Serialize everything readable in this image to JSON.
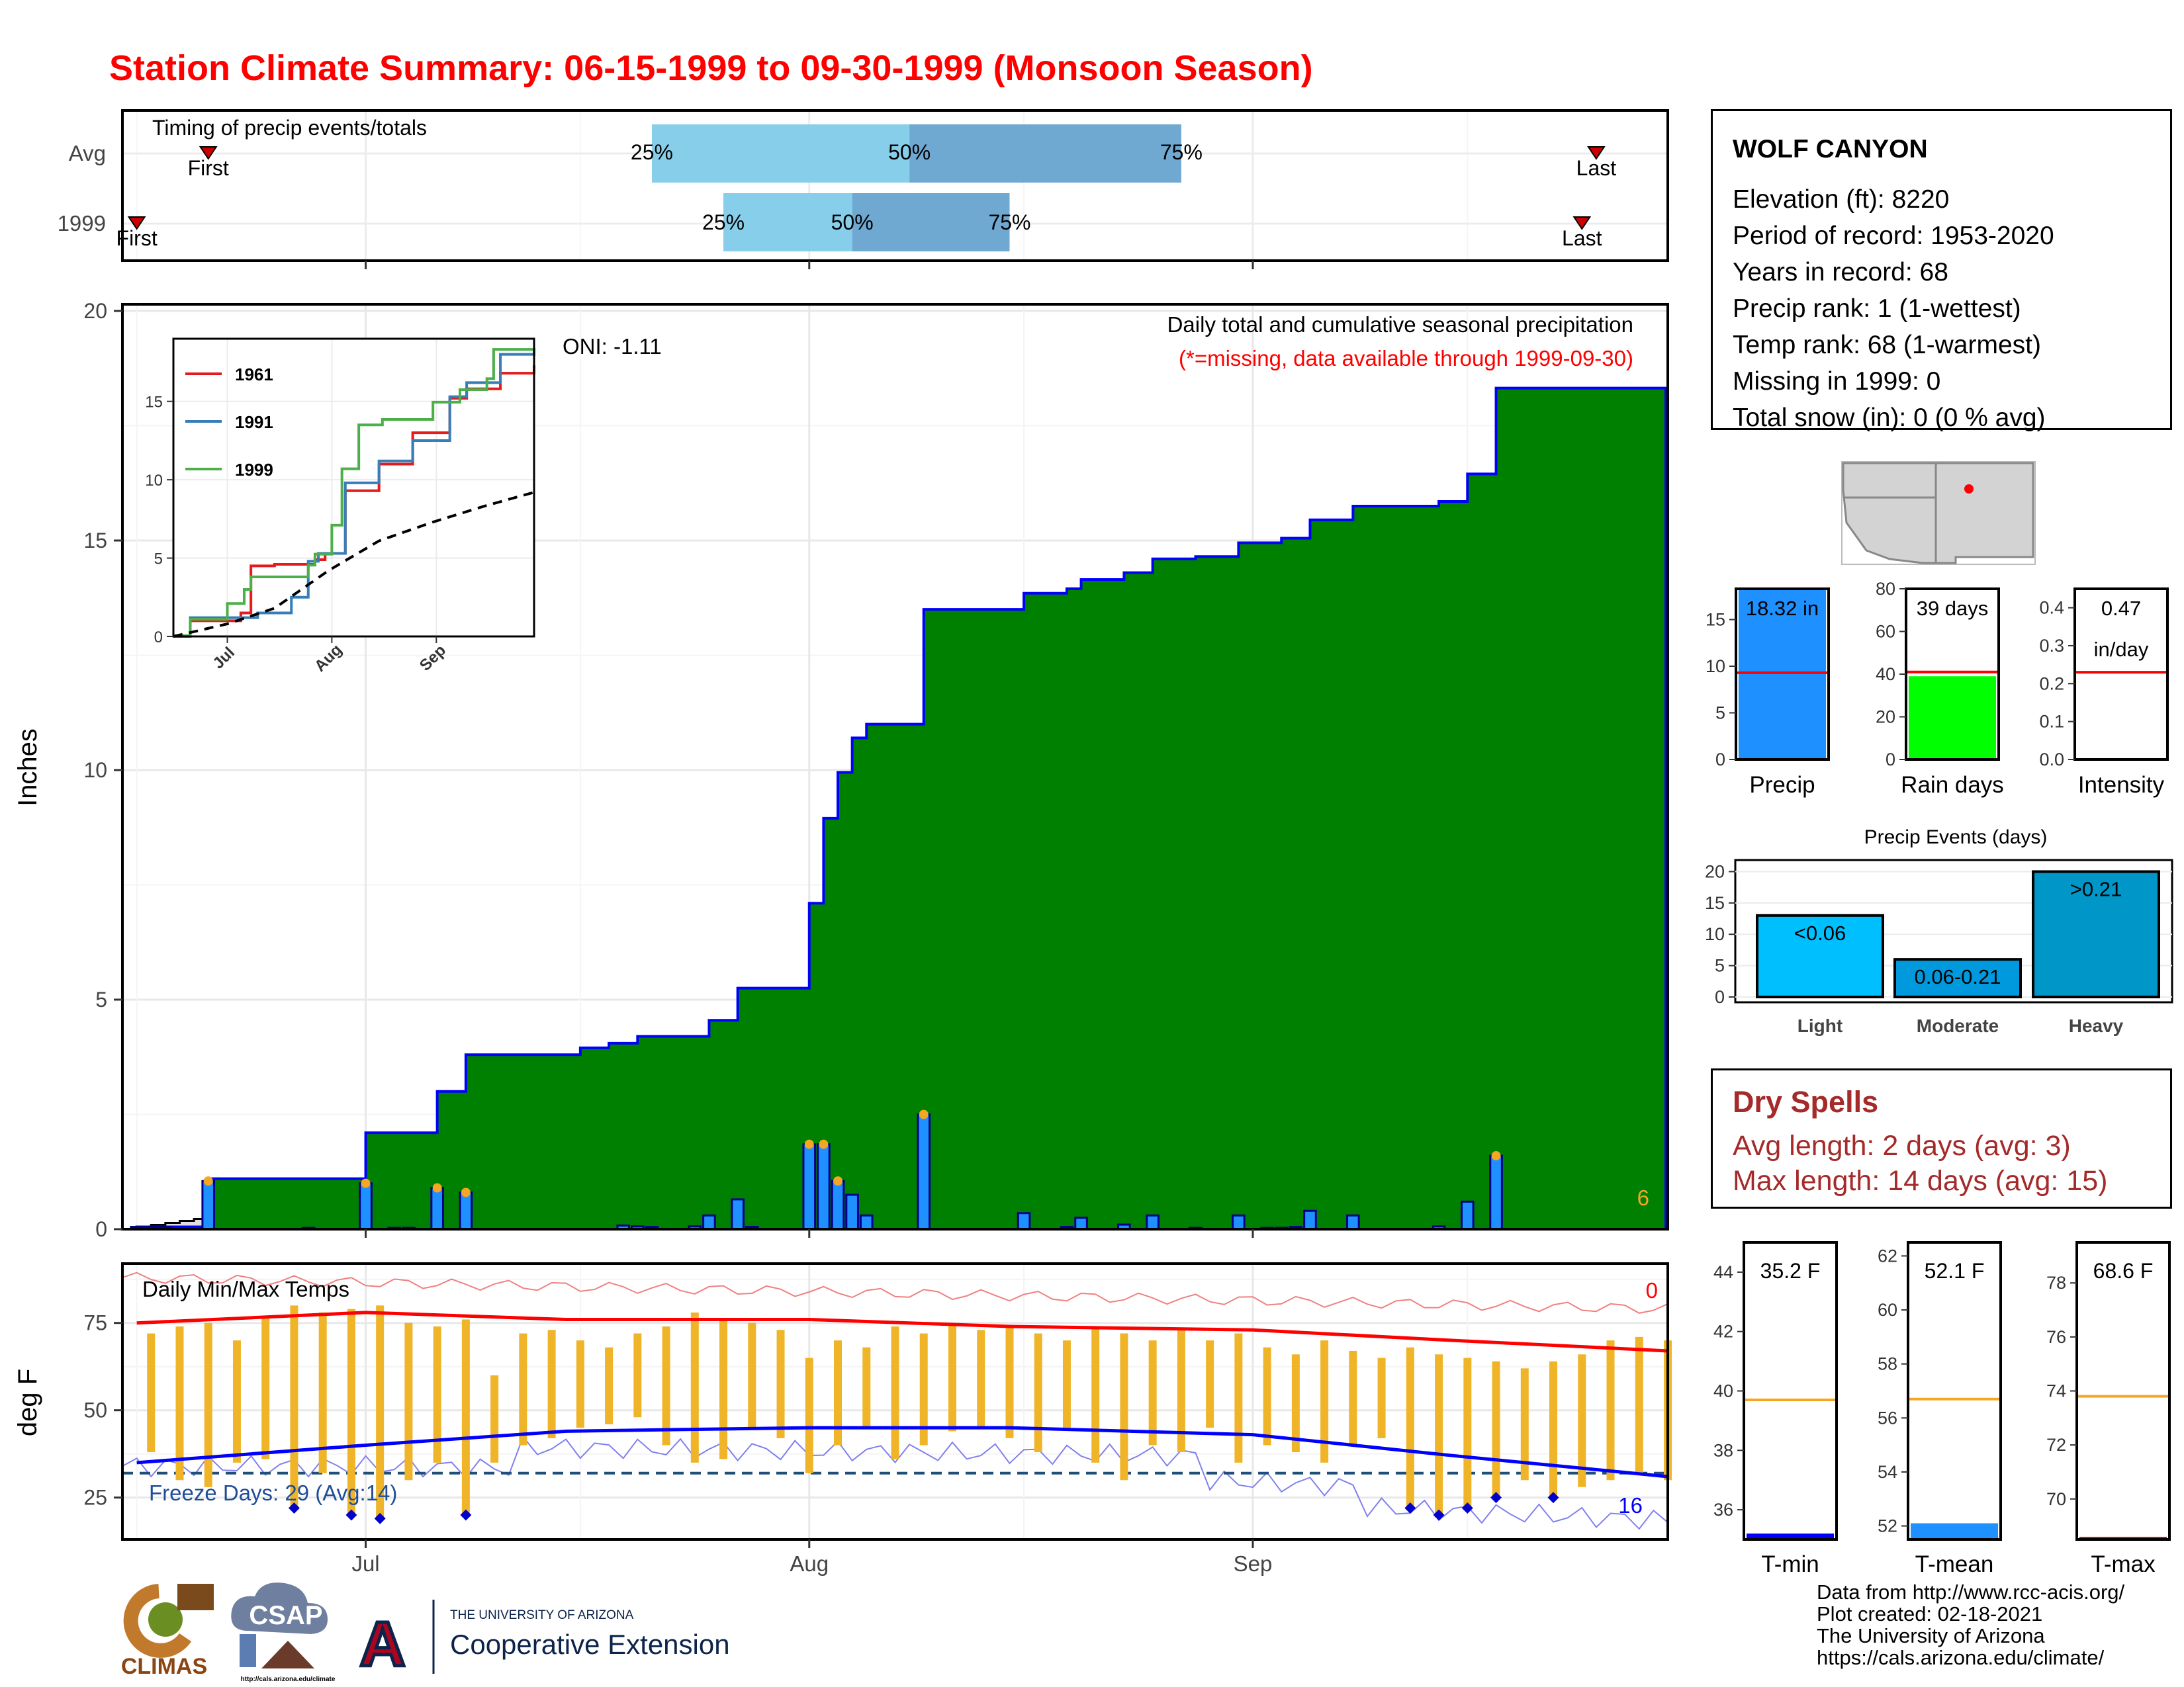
{
  "title": "Station Climate Summary: 06-15-1999 to 09-30-1999 (Monsoon Season)",
  "station": {
    "name": "WOLF CANYON",
    "lines": [
      "Elevation (ft): 8220",
      "Period of record: 1953-2020",
      "Years in record: 68",
      "Precip rank: 1 (1-wettest)",
      "Temp rank: 68 (1-warmest)",
      "Missing in 1999: 0",
      "Total snow (in): 0 (0 % avg)"
    ]
  },
  "timing": {
    "title": "Timing of precip events/totals",
    "rows": [
      {
        "label": "Avg",
        "first_label": "First",
        "last_label": "Last",
        "first": "06-20",
        "p25": "07-21",
        "p50": "08-08",
        "p75": "08-27",
        "last": "09-25"
      },
      {
        "label": "1999",
        "first_label": "First",
        "last_label": "Last",
        "first": "06-15",
        "p25": "07-26",
        "p50": "08-04",
        "p75": "08-15",
        "last": "09-24"
      }
    ],
    "pct_labels": [
      "25%",
      "50%",
      "75%"
    ]
  },
  "x_axis": {
    "ticks": [
      "Jul",
      "Aug",
      "Sep"
    ]
  },
  "precip": {
    "ylabel": "Inches",
    "yticks": [
      "0",
      "5",
      "10",
      "15",
      "20"
    ],
    "header": "Daily total and cumulative seasonal precipitation",
    "subheader": "(*=missing, data available through 1999-09-30)",
    "oni": "ONI: -1.11",
    "count_label": "6"
  },
  "inset": {
    "yticks": [
      "0",
      "5",
      "10",
      "15"
    ],
    "xticks": [
      "Jul",
      "Aug",
      "Sep"
    ],
    "legend": [
      "1961",
      "1991",
      "1999"
    ]
  },
  "temps": {
    "ylabel": "deg F",
    "title": "Daily Min/Max Temps",
    "yticks": [
      "25",
      "50",
      "75"
    ],
    "freeze_label": "Freeze Days: 29 (Avg:14)",
    "hot_count": "0",
    "cold_count": "16"
  },
  "bars": {
    "precip": {
      "value": "18.32 in",
      "label": "Precip",
      "yticks": [
        "0",
        "5",
        "10",
        "15"
      ]
    },
    "raindays": {
      "value": "39 days",
      "label": "Rain days",
      "yticks": [
        "0",
        "20",
        "40",
        "60",
        "80"
      ]
    },
    "intensity": {
      "value": "0.47",
      "unit": "in/day",
      "label": "Intensity",
      "yticks": [
        "0.0",
        "0.1",
        "0.2",
        "0.3",
        "0.4"
      ]
    }
  },
  "events": {
    "title": "Precip Events (days)",
    "yticks": [
      "0",
      "5",
      "10",
      "15",
      "20"
    ],
    "categories": [
      "Light",
      "Moderate",
      "Heavy"
    ],
    "labels": [
      "<0.06",
      "0.06-0.21",
      ">0.21"
    ]
  },
  "dry_spells": {
    "title": "Dry Spells",
    "avg": "Avg length: 2 days (avg: 3)",
    "max": "Max length: 14 days (avg: 15)"
  },
  "temp_bars": {
    "tmin": {
      "value": "35.2 F",
      "label": "T-min",
      "yticks": [
        "36",
        "38",
        "40",
        "42",
        "44"
      ]
    },
    "tmean": {
      "value": "52.1 F",
      "label": "T-mean",
      "yticks": [
        "52",
        "54",
        "56",
        "58",
        "60",
        "62"
      ]
    },
    "tmax": {
      "value": "68.6 F",
      "label": "T-max",
      "yticks": [
        "70",
        "72",
        "74",
        "76",
        "78"
      ]
    }
  },
  "credits": [
    "Data from http://www.rcc-acis.org/",
    "Plot created: 02-18-2021",
    "The University of Arizona",
    "https://cals.arizona.edu/climate/"
  ],
  "logos": {
    "climas": "CLIMAS",
    "csap": "CSAP",
    "csap_url": "http://cals.arizona.edu/climate",
    "ua_small": "THE UNIVERSITY OF ARIZONA",
    "ua_big": "Cooperative Extension"
  },
  "colors": {
    "title": "#ff0000",
    "cumulative_fill": "#008000",
    "cumulative_line": "#0000ff",
    "avg_cumulative_fill": "#e0e0e0",
    "daily_bar": "#1e90ff",
    "temp_bar": "#f0b429",
    "avg_tmax": "#ff0000",
    "avg_tmin": "#0000ff",
    "dry_spells": "#a52a2a",
    "iqr_light": "#87ceeb",
    "iqr_dark": "#6fa8d0"
  },
  "chart_data": [
    {
      "type": "bar",
      "title": "Daily total and cumulative seasonal precipitation",
      "ylabel": "Inches",
      "ylim": [
        0,
        20
      ],
      "grid": true,
      "daily_precip": [
        {
          "date": "06-15",
          "value": 0.05
        },
        {
          "date": "06-16",
          "value": 0.05
        },
        {
          "date": "06-17",
          "value": 0.05
        },
        {
          "date": "06-20",
          "value": 1.05
        },
        {
          "date": "06-27",
          "value": 0.03
        },
        {
          "date": "07-01",
          "value": 1.0
        },
        {
          "date": "07-03",
          "value": 0.03
        },
        {
          "date": "07-04",
          "value": 0.03
        },
        {
          "date": "07-06",
          "value": 0.9
        },
        {
          "date": "07-08",
          "value": 0.8
        },
        {
          "date": "07-19",
          "value": 0.08
        },
        {
          "date": "07-20",
          "value": 0.06
        },
        {
          "date": "07-21",
          "value": 0.05
        },
        {
          "date": "07-24",
          "value": 0.06
        },
        {
          "date": "07-25",
          "value": 0.3
        },
        {
          "date": "07-27",
          "value": 0.65
        },
        {
          "date": "07-28",
          "value": 0.05
        },
        {
          "date": "08-01",
          "value": 1.85
        },
        {
          "date": "08-02",
          "value": 1.85
        },
        {
          "date": "08-03",
          "value": 1.05
        },
        {
          "date": "08-04",
          "value": 0.75
        },
        {
          "date": "08-05",
          "value": 0.3
        },
        {
          "date": "08-09",
          "value": 2.5
        },
        {
          "date": "08-16",
          "value": 0.35
        },
        {
          "date": "08-19",
          "value": 0.05
        },
        {
          "date": "08-20",
          "value": 0.25
        },
        {
          "date": "08-23",
          "value": 0.1
        },
        {
          "date": "08-25",
          "value": 0.3
        },
        {
          "date": "08-28",
          "value": 0.03
        },
        {
          "date": "08-31",
          "value": 0.3
        },
        {
          "date": "09-02",
          "value": 0.03
        },
        {
          "date": "09-03",
          "value": 0.03
        },
        {
          "date": "09-04",
          "value": 0.05
        },
        {
          "date": "09-05",
          "value": 0.4
        },
        {
          "date": "09-08",
          "value": 0.3
        },
        {
          "date": "09-14",
          "value": 0.06
        },
        {
          "date": "09-16",
          "value": 0.6
        },
        {
          "date": "09-18",
          "value": 1.6
        }
      ],
      "cumulative_1999": {
        "dates": [
          "06-15",
          "06-20",
          "07-01",
          "07-06",
          "07-08",
          "07-16",
          "07-18",
          "07-20",
          "07-25",
          "07-27",
          "08-01",
          "08-02",
          "08-03",
          "08-04",
          "08-05",
          "08-09",
          "08-16",
          "08-19",
          "08-20",
          "08-23",
          "08-25",
          "08-28",
          "08-31",
          "09-03",
          "09-05",
          "09-08",
          "09-14",
          "09-16",
          "09-18",
          "09-30"
        ],
        "values": [
          0.05,
          1.1,
          2.1,
          3.0,
          3.8,
          3.95,
          4.05,
          4.2,
          4.55,
          5.25,
          7.1,
          8.95,
          9.95,
          10.7,
          11.0,
          13.5,
          13.85,
          13.95,
          14.15,
          14.3,
          14.6,
          14.65,
          14.95,
          15.05,
          15.45,
          15.75,
          15.85,
          16.45,
          18.32,
          18.32
        ]
      },
      "avg_cumulative": {
        "dates": [
          "06-15",
          "06-30",
          "07-15",
          "07-31",
          "08-15",
          "08-31",
          "09-15",
          "09-30"
        ],
        "values": [
          0.05,
          0.7,
          1.8,
          4.2,
          6.1,
          7.3,
          8.3,
          9.2
        ]
      }
    },
    {
      "type": "line",
      "title": "",
      "ylim": [
        0,
        19
      ],
      "legend_placement": "top-left",
      "series": [
        {
          "name": "1961",
          "dates": [
            "06-15",
            "06-20",
            "07-05",
            "07-08",
            "07-15",
            "07-25",
            "07-27",
            "07-30",
            "08-05",
            "08-15",
            "08-25",
            "09-05",
            "09-10",
            "09-20",
            "09-30"
          ],
          "values": [
            0.0,
            1.0,
            1.5,
            4.5,
            4.6,
            4.6,
            4.9,
            5.3,
            9.3,
            11.0,
            13.0,
            15.2,
            15.8,
            16.8,
            17.3
          ]
        },
        {
          "name": "1991",
          "dates": [
            "06-15",
            "06-20",
            "07-10",
            "07-20",
            "07-25",
            "07-28",
            "08-05",
            "08-15",
            "08-25",
            "09-05",
            "09-10",
            "09-20",
            "09-30"
          ],
          "values": [
            0.0,
            1.2,
            1.5,
            2.5,
            4.8,
            5.3,
            9.8,
            11.2,
            12.5,
            15.3,
            16.2,
            18.0,
            18.4
          ]
        },
        {
          "name": "1999",
          "dates": [
            "06-15",
            "06-20",
            "07-01",
            "07-06",
            "07-08",
            "07-25",
            "07-27",
            "08-01",
            "08-04",
            "08-09",
            "08-16",
            "08-31",
            "09-08",
            "09-16",
            "09-18",
            "09-30"
          ],
          "values": [
            0.05,
            1.1,
            2.1,
            3.0,
            3.8,
            4.55,
            5.25,
            7.1,
            10.7,
            13.5,
            13.85,
            14.95,
            15.75,
            16.45,
            18.32,
            18.32
          ]
        },
        {
          "name": "",
          "dates": [
            "06-15",
            "07-01",
            "07-15",
            "07-31",
            "08-15",
            "08-31",
            "09-15",
            "09-30"
          ],
          "values": [
            0.0,
            0.8,
            1.8,
            4.2,
            6.1,
            7.3,
            8.3,
            9.2
          ]
        }
      ]
    },
    {
      "type": "bar",
      "title": "Daily Min/Max Temps",
      "ylabel": "deg F",
      "ylim": [
        13,
        92
      ],
      "freeze_threshold": 32,
      "avg_tmax_curve": {
        "dates": [
          "06-15",
          "07-01",
          "07-15",
          "08-01",
          "08-15",
          "09-01",
          "09-15",
          "09-30"
        ],
        "values": [
          75,
          78,
          76,
          76,
          74,
          73,
          70,
          67
        ]
      },
      "avg_tmin_curve": {
        "dates": [
          "06-15",
          "07-01",
          "07-15",
          "08-01",
          "08-15",
          "09-01",
          "09-15",
          "09-30"
        ],
        "values": [
          35,
          40,
          44,
          45,
          45,
          43,
          37,
          31
        ]
      },
      "daily": [
        {
          "date": "06-16",
          "tmin": 38,
          "tmax": 72
        },
        {
          "date": "06-18",
          "tmin": 30,
          "tmax": 74
        },
        {
          "date": "06-20",
          "tmin": 28,
          "tmax": 75
        },
        {
          "date": "06-22",
          "tmin": 35,
          "tmax": 70
        },
        {
          "date": "06-24",
          "tmin": 36,
          "tmax": 77
        },
        {
          "date": "06-26",
          "tmin": 22,
          "tmax": 80
        },
        {
          "date": "06-28",
          "tmin": 32,
          "tmax": 78
        },
        {
          "date": "06-30",
          "tmin": 20,
          "tmax": 79
        },
        {
          "date": "07-02",
          "tmin": 19,
          "tmax": 80
        },
        {
          "date": "07-04",
          "tmin": 30,
          "tmax": 75
        },
        {
          "date": "07-06",
          "tmin": 35,
          "tmax": 74
        },
        {
          "date": "07-08",
          "tmin": 20,
          "tmax": 76
        },
        {
          "date": "07-10",
          "tmin": 35,
          "tmax": 60
        },
        {
          "date": "07-12",
          "tmin": 40,
          "tmax": 72
        },
        {
          "date": "07-14",
          "tmin": 42,
          "tmax": 73
        },
        {
          "date": "07-16",
          "tmin": 45,
          "tmax": 70
        },
        {
          "date": "07-18",
          "tmin": 46,
          "tmax": 68
        },
        {
          "date": "07-20",
          "tmin": 48,
          "tmax": 72
        },
        {
          "date": "07-22",
          "tmin": 40,
          "tmax": 74
        },
        {
          "date": "07-24",
          "tmin": 35,
          "tmax": 78
        },
        {
          "date": "07-26",
          "tmin": 36,
          "tmax": 76
        },
        {
          "date": "07-28",
          "tmin": 45,
          "tmax": 75
        },
        {
          "date": "07-30",
          "tmin": 42,
          "tmax": 73
        },
        {
          "date": "08-01",
          "tmin": 32,
          "tmax": 65
        },
        {
          "date": "08-03",
          "tmin": 40,
          "tmax": 70
        },
        {
          "date": "08-05",
          "tmin": 45,
          "tmax": 68
        },
        {
          "date": "08-07",
          "tmin": 36,
          "tmax": 74
        },
        {
          "date": "08-09",
          "tmin": 40,
          "tmax": 72
        },
        {
          "date": "08-11",
          "tmin": 44,
          "tmax": 75
        },
        {
          "date": "08-13",
          "tmin": 45,
          "tmax": 73
        },
        {
          "date": "08-15",
          "tmin": 42,
          "tmax": 74
        },
        {
          "date": "08-17",
          "tmin": 38,
          "tmax": 72
        },
        {
          "date": "08-19",
          "tmin": 45,
          "tmax": 70
        },
        {
          "date": "08-21",
          "tmin": 35,
          "tmax": 74
        },
        {
          "date": "08-23",
          "tmin": 30,
          "tmax": 72
        },
        {
          "date": "08-25",
          "tmin": 40,
          "tmax": 70
        },
        {
          "date": "08-27",
          "tmin": 38,
          "tmax": 73
        },
        {
          "date": "08-29",
          "tmin": 45,
          "tmax": 70
        },
        {
          "date": "08-31",
          "tmin": 35,
          "tmax": 72
        },
        {
          "date": "09-02",
          "tmin": 40,
          "tmax": 68
        },
        {
          "date": "09-04",
          "tmin": 38,
          "tmax": 66
        },
        {
          "date": "09-06",
          "tmin": 35,
          "tmax": 70
        },
        {
          "date": "09-08",
          "tmin": 40,
          "tmax": 67
        },
        {
          "date": "09-10",
          "tmin": 42,
          "tmax": 65
        },
        {
          "date": "09-12",
          "tmin": 22,
          "tmax": 68
        },
        {
          "date": "09-14",
          "tmin": 20,
          "tmax": 66
        },
        {
          "date": "09-16",
          "tmin": 22,
          "tmax": 65
        },
        {
          "date": "09-18",
          "tmin": 25,
          "tmax": 64
        },
        {
          "date": "09-20",
          "tmin": 30,
          "tmax": 62
        },
        {
          "date": "09-22",
          "tmin": 25,
          "tmax": 64
        },
        {
          "date": "09-24",
          "tmin": 28,
          "tmax": 66
        },
        {
          "date": "09-26",
          "tmin": 30,
          "tmax": 70
        },
        {
          "date": "09-28",
          "tmin": 32,
          "tmax": 71
        },
        {
          "date": "09-30",
          "tmin": 30,
          "tmax": 70
        }
      ]
    },
    {
      "type": "bar",
      "title": "",
      "categories": [
        "Precip",
        "Rain days",
        "Intensity"
      ],
      "values": [
        18.32,
        39,
        0.47
      ],
      "averages": [
        9.3,
        41,
        0.23
      ],
      "ylims": [
        [
          0,
          18.3
        ],
        [
          0,
          80
        ],
        [
          0,
          0.45
        ]
      ]
    },
    {
      "type": "bar",
      "title": "Precip Events (days)",
      "categories": [
        "Light",
        "Moderate",
        "Heavy"
      ],
      "values": [
        13,
        6,
        20
      ],
      "ylim": [
        0,
        21
      ]
    },
    {
      "type": "bar",
      "title": "",
      "categories": [
        "T-min",
        "T-mean",
        "T-max"
      ],
      "values": [
        35.2,
        52.1,
        68.6
      ],
      "averages": [
        39.7,
        56.7,
        73.8
      ],
      "ylims": [
        [
          35,
          45
        ],
        [
          51.5,
          62.5
        ],
        [
          68.5,
          79.5
        ]
      ]
    }
  ]
}
